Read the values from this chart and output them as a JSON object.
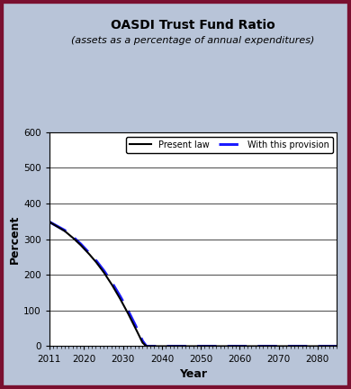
{
  "title_line1": "OASDI Trust Fund Ratio",
  "title_line2": "(assets as a percentage of annual expenditures)",
  "xlabel": "Year",
  "ylabel": "Percent",
  "xlim": [
    2011,
    2085
  ],
  "ylim": [
    0,
    600
  ],
  "yticks": [
    0,
    100,
    200,
    300,
    400,
    500,
    600
  ],
  "xticks": [
    2011,
    2020,
    2030,
    2040,
    2050,
    2060,
    2070,
    2080
  ],
  "background_outer": "#b8c4d8",
  "background_plot": "#ffffff",
  "border_color": "#7a1030",
  "present_law_color": "#000000",
  "provision_color": "#1a1aff",
  "legend_label_1": "Present law",
  "legend_label_2": "With this provision",
  "present_law_x": [
    2011,
    2013,
    2015,
    2017,
    2019,
    2021,
    2023,
    2025,
    2027,
    2029,
    2031,
    2033,
    2035,
    2036,
    2037,
    2085
  ],
  "present_law_y": [
    349,
    336,
    323,
    305,
    285,
    262,
    237,
    208,
    175,
    138,
    98,
    55,
    10,
    0,
    0,
    0
  ],
  "provision_x": [
    2011,
    2013,
    2015,
    2017,
    2019,
    2021,
    2023,
    2025,
    2027,
    2029,
    2031,
    2033,
    2035,
    2036,
    2037,
    2085
  ],
  "provision_y": [
    349,
    337,
    325,
    308,
    288,
    265,
    241,
    213,
    181,
    145,
    106,
    63,
    15,
    0,
    0,
    0
  ]
}
